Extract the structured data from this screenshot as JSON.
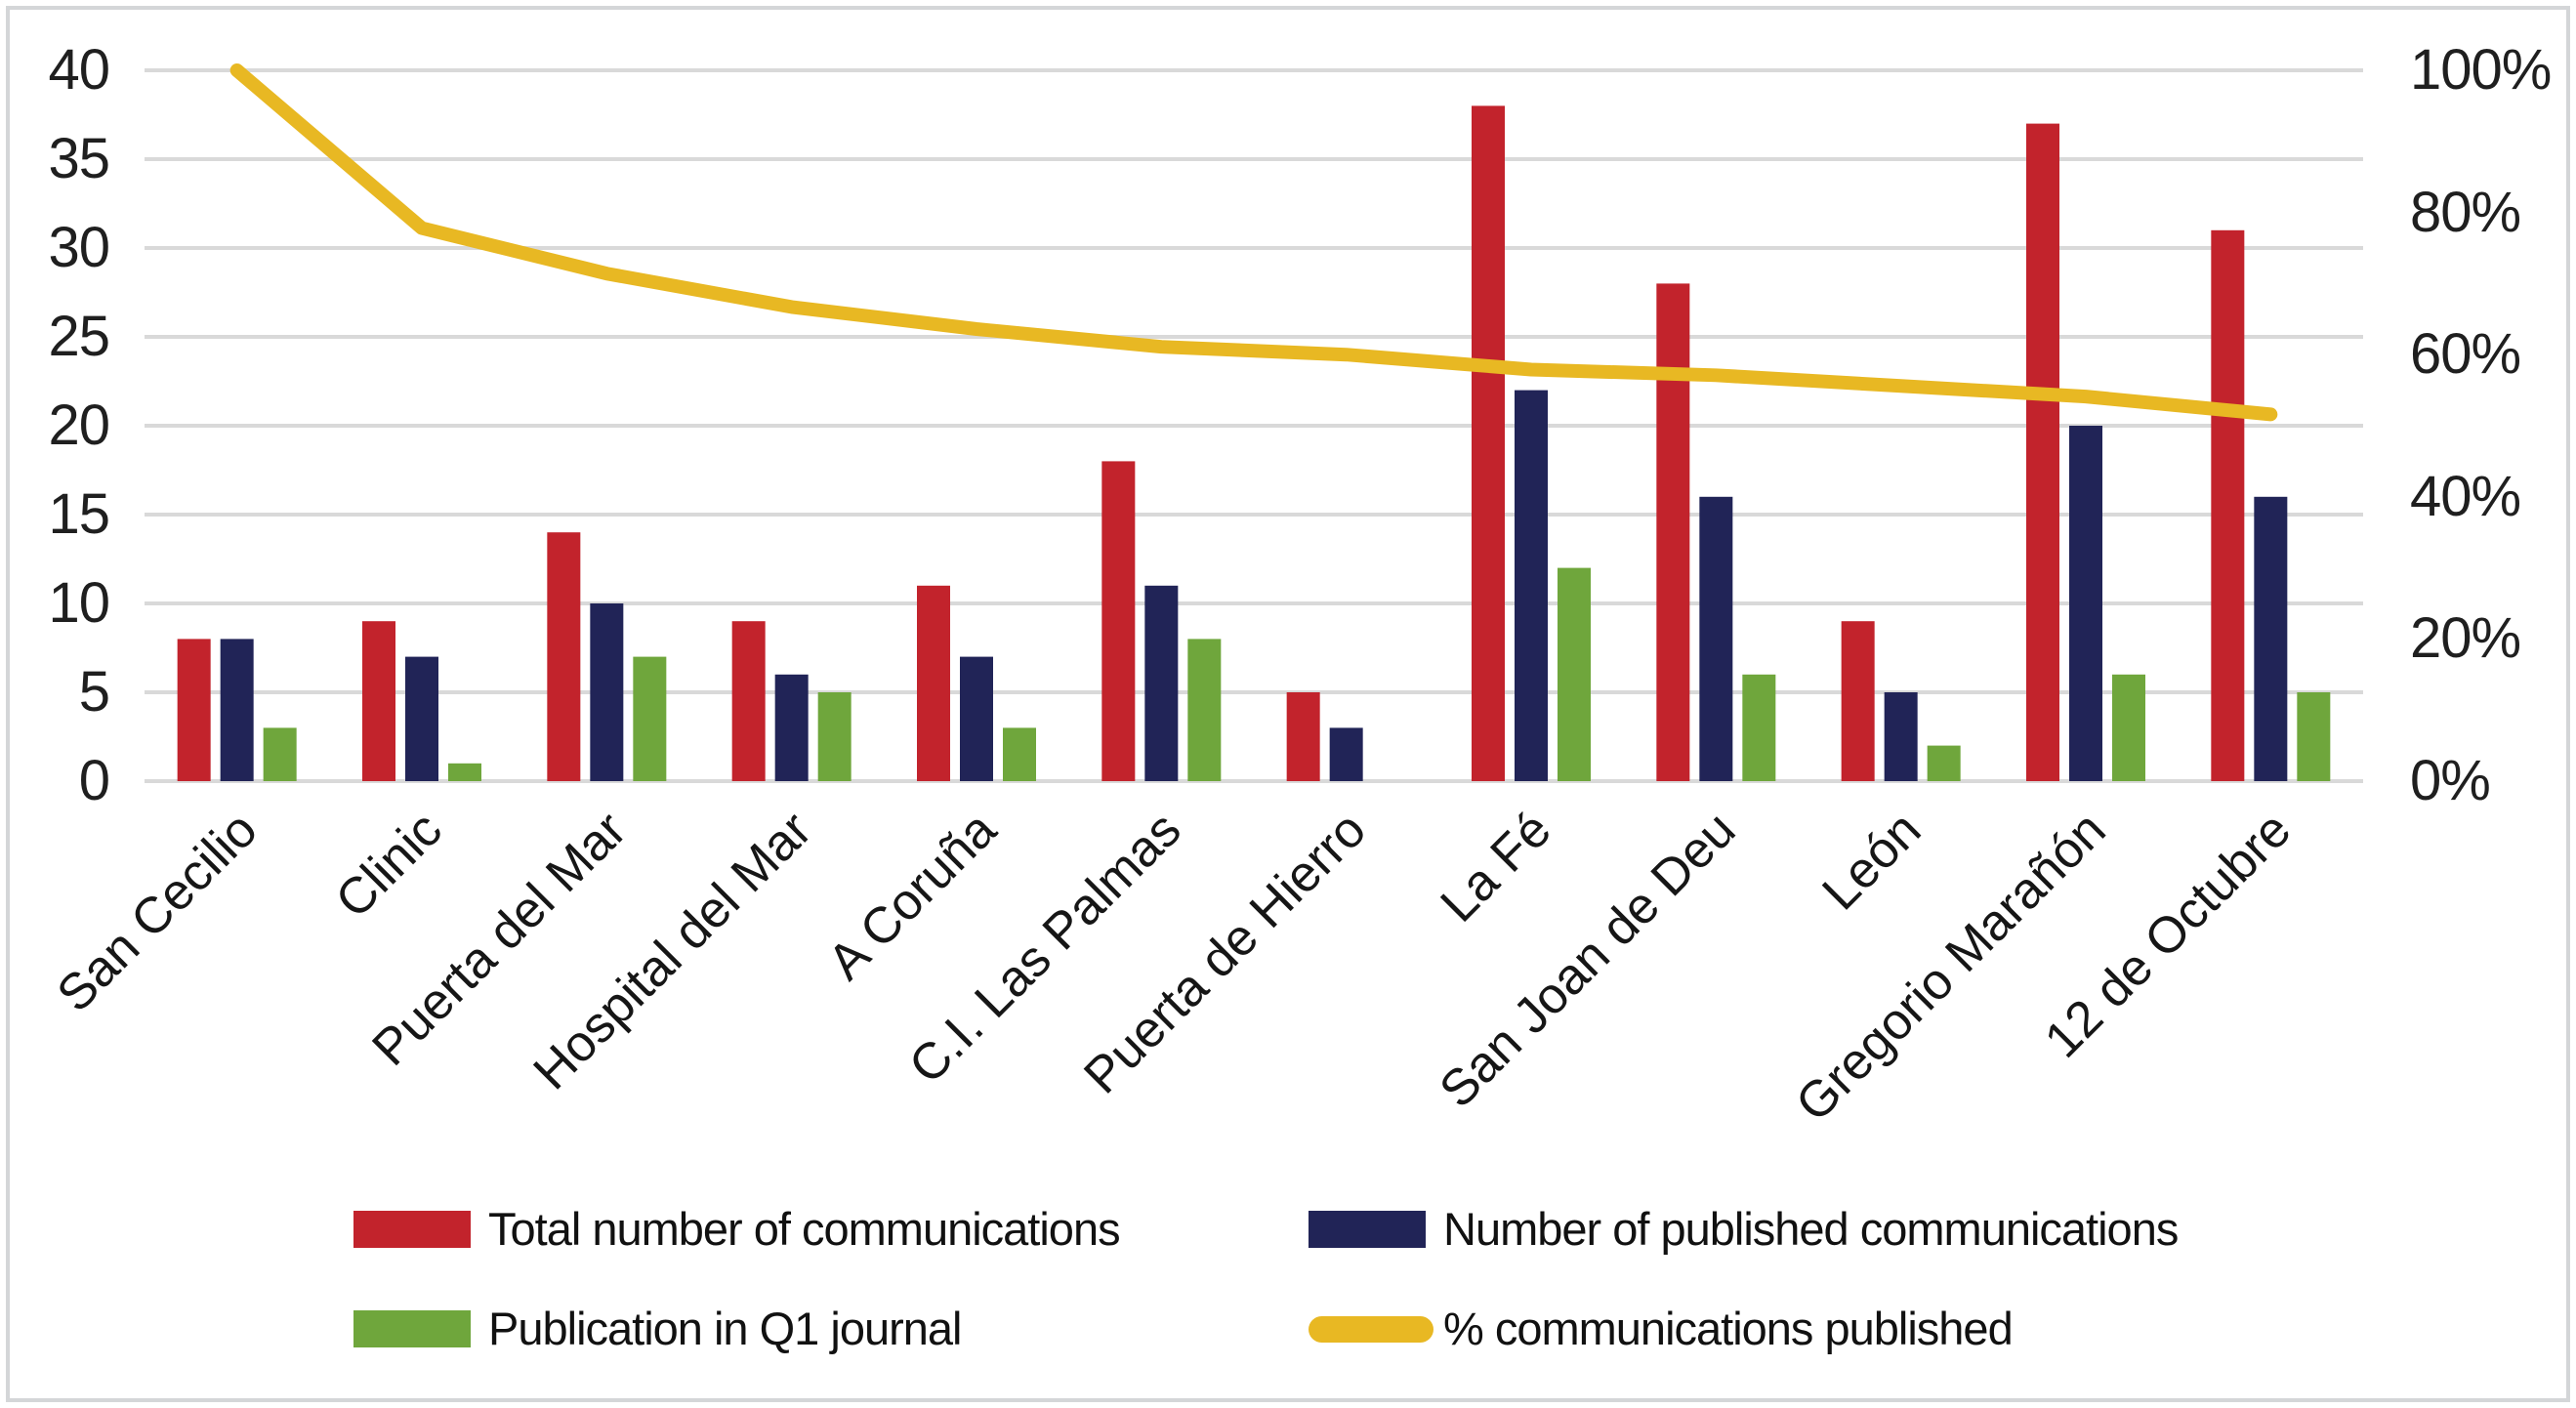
{
  "figure": {
    "background": "#ffffff",
    "border_color": "#d4d6d8"
  },
  "chart_data": {
    "type": "combo-bar-line",
    "title": "",
    "categories": [
      "San Cecilio",
      "Clinic",
      "Puerta del Mar",
      "Hospital del Mar",
      "A Coruña",
      "C.I. Las Palmas",
      "Puerta de Hierro",
      "La Fé",
      "San Joan de Deu",
      "León",
      "Gregorio Marañón",
      "12 de Octubre"
    ],
    "series": [
      {
        "name": "Total number of communications",
        "type": "bar",
        "color": "#c2232c",
        "axis": "left",
        "values": [
          8,
          9,
          14,
          9,
          11,
          18,
          5,
          38,
          28,
          9,
          37,
          31
        ]
      },
      {
        "name": "Number of published communications",
        "type": "bar",
        "color": "#212457",
        "axis": "left",
        "values": [
          8,
          7,
          10,
          6,
          7,
          11,
          3,
          22,
          16,
          5,
          20,
          16
        ]
      },
      {
        "name": "Publication in Q1 journal",
        "type": "bar",
        "color": "#6fa63c",
        "axis": "left",
        "values": [
          3,
          1,
          7,
          5,
          3,
          8,
          0,
          12,
          6,
          2,
          6,
          5
        ]
      },
      {
        "name": "% communications published",
        "type": "line",
        "color": "#e8b823",
        "axis": "right",
        "values_percent": [
          100,
          77.8,
          71.4,
          66.7,
          63.6,
          61.1,
          60,
          57.9,
          57.1,
          55.6,
          54.1,
          51.6
        ]
      }
    ],
    "left_axis": {
      "min": 0,
      "max": 40,
      "step": 5,
      "tick_labels": [
        "0",
        "5",
        "10",
        "15",
        "20",
        "25",
        "30",
        "35",
        "40"
      ]
    },
    "right_axis": {
      "min_percent": 0,
      "max_percent": 100,
      "step_percent": 20,
      "tick_labels": [
        "0%",
        "20%",
        "40%",
        "60%",
        "80%",
        "100%"
      ]
    },
    "grid": {
      "visible": true,
      "color": "#d9d9d9"
    },
    "legend": [
      {
        "label": "Total number of communications",
        "swatch": "rect",
        "color": "#c2232c"
      },
      {
        "label": "Number of published communications",
        "swatch": "rect",
        "color": "#212457"
      },
      {
        "label": "Publication in Q1 journal",
        "swatch": "rect",
        "color": "#6fa63c"
      },
      {
        "label": "% communications published",
        "swatch": "line",
        "color": "#e8b823"
      }
    ]
  }
}
